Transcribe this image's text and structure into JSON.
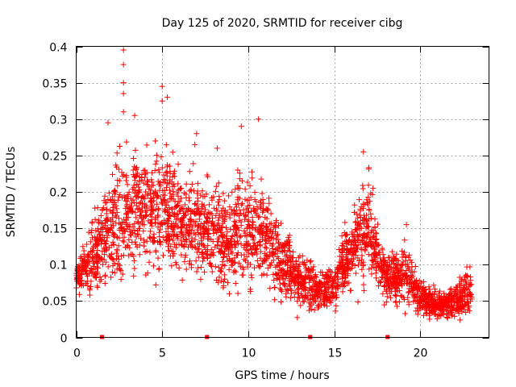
{
  "chart_data": {
    "type": "scatter",
    "title": "Day 125 of 2020, SRMTID for receiver cibg",
    "xlabel": "GPS time / hours",
    "ylabel": "SRMTID / TECUs",
    "xlim": [
      0,
      24
    ],
    "ylim": [
      0,
      0.4
    ],
    "xticks": [
      0,
      5,
      10,
      15,
      20
    ],
    "yticks": [
      0,
      0.05,
      0.1,
      0.15,
      0.2,
      0.25,
      0.3,
      0.35,
      0.4
    ],
    "xtick_labels": [
      "0",
      "5",
      "10",
      "15",
      "20"
    ],
    "ytick_labels": [
      "0",
      "0.05",
      "0.1",
      "0.15",
      "0.2",
      "0.25",
      "0.3",
      "0.35",
      "0.4"
    ],
    "grid": true,
    "marker": "plus",
    "series_color": "#ff0000",
    "gap_markers_x": [
      1.5,
      7.6,
      13.6,
      18.1
    ],
    "profile": [
      [
        0.0,
        0.085,
        0.012
      ],
      [
        0.5,
        0.095,
        0.02
      ],
      [
        1.0,
        0.11,
        0.03
      ],
      [
        1.5,
        0.14,
        0.035
      ],
      [
        2.0,
        0.155,
        0.045
      ],
      [
        2.5,
        0.17,
        0.06
      ],
      [
        3.0,
        0.165,
        0.05
      ],
      [
        3.5,
        0.18,
        0.05
      ],
      [
        4.0,
        0.175,
        0.05
      ],
      [
        4.5,
        0.17,
        0.045
      ],
      [
        5.0,
        0.18,
        0.06
      ],
      [
        5.5,
        0.175,
        0.05
      ],
      [
        6.0,
        0.16,
        0.045
      ],
      [
        6.5,
        0.155,
        0.04
      ],
      [
        7.0,
        0.15,
        0.045
      ],
      [
        7.5,
        0.145,
        0.04
      ],
      [
        8.0,
        0.14,
        0.04
      ],
      [
        8.5,
        0.14,
        0.04
      ],
      [
        9.0,
        0.13,
        0.04
      ],
      [
        9.5,
        0.15,
        0.05
      ],
      [
        10.0,
        0.155,
        0.05
      ],
      [
        10.5,
        0.15,
        0.045
      ],
      [
        11.0,
        0.14,
        0.045
      ],
      [
        11.5,
        0.12,
        0.04
      ],
      [
        12.0,
        0.1,
        0.03
      ],
      [
        12.5,
        0.09,
        0.03
      ],
      [
        13.0,
        0.08,
        0.025
      ],
      [
        13.5,
        0.075,
        0.025
      ],
      [
        14.0,
        0.065,
        0.015
      ],
      [
        14.5,
        0.065,
        0.015
      ],
      [
        15.0,
        0.07,
        0.02
      ],
      [
        15.5,
        0.1,
        0.025
      ],
      [
        16.0,
        0.12,
        0.03
      ],
      [
        16.5,
        0.14,
        0.035
      ],
      [
        17.0,
        0.15,
        0.045
      ],
      [
        17.5,
        0.11,
        0.03
      ],
      [
        18.0,
        0.085,
        0.02
      ],
      [
        18.5,
        0.08,
        0.02
      ],
      [
        19.0,
        0.085,
        0.025
      ],
      [
        19.5,
        0.075,
        0.02
      ],
      [
        20.0,
        0.055,
        0.015
      ],
      [
        20.5,
        0.05,
        0.012
      ],
      [
        21.0,
        0.045,
        0.012
      ],
      [
        21.5,
        0.045,
        0.012
      ],
      [
        22.0,
        0.05,
        0.015
      ],
      [
        22.5,
        0.06,
        0.02
      ],
      [
        23.0,
        0.07,
        0.02
      ]
    ],
    "point_count": 3000,
    "peaks": [
      [
        2.75,
        0.395
      ],
      [
        2.75,
        0.375
      ],
      [
        2.75,
        0.35
      ],
      [
        2.75,
        0.335
      ],
      [
        2.75,
        0.31
      ],
      [
        5.0,
        0.345
      ],
      [
        5.0,
        0.325
      ],
      [
        5.3,
        0.33
      ],
      [
        1.85,
        0.295
      ],
      [
        3.4,
        0.305
      ],
      [
        4.6,
        0.27
      ],
      [
        7.0,
        0.28
      ],
      [
        9.6,
        0.29
      ],
      [
        10.6,
        0.3
      ],
      [
        16.7,
        0.255
      ],
      [
        6.9,
        0.265
      ],
      [
        8.2,
        0.26
      ],
      [
        19.2,
        0.155
      ]
    ]
  }
}
